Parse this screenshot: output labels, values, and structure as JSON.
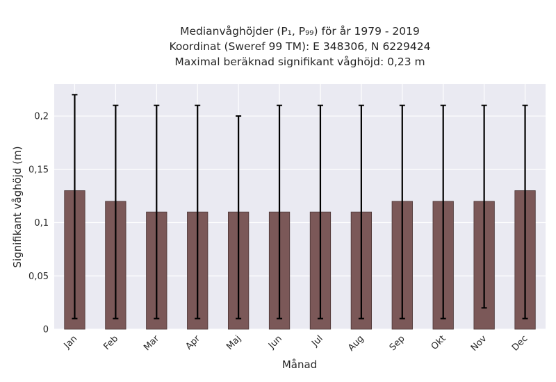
{
  "chart_data": {
    "type": "bar",
    "title_lines": [
      "Medianvåghöjder (P₁, P₉₉) för år 1979 - 2019",
      "Koordinat (Sweref 99 TM): E 348306, N 6229424",
      "Maximal beräknad signifikant våghöjd: 0,23 m"
    ],
    "xlabel": "Månad",
    "ylabel": "Signifikant våghöjd (m)",
    "categories": [
      "Jan",
      "Feb",
      "Mar",
      "Apr",
      "Maj",
      "Jun",
      "Jul",
      "Aug",
      "Sep",
      "Okt",
      "Nov",
      "Dec"
    ],
    "values": [
      0.13,
      0.12,
      0.11,
      0.11,
      0.11,
      0.11,
      0.11,
      0.11,
      0.12,
      0.12,
      0.12,
      0.13
    ],
    "error_low": [
      0.01,
      0.01,
      0.01,
      0.01,
      0.01,
      0.01,
      0.01,
      0.01,
      0.01,
      0.01,
      0.02,
      0.01
    ],
    "error_high": [
      0.22,
      0.21,
      0.21,
      0.21,
      0.2,
      0.21,
      0.21,
      0.21,
      0.21,
      0.21,
      0.21,
      0.21
    ],
    "ylim": [
      0,
      0.23
    ],
    "yticks": [
      0,
      0.05,
      0.1,
      0.15,
      0.2
    ],
    "ytick_labels": [
      "0",
      "0,05",
      "0,1",
      "0,15",
      "0,2"
    ],
    "grid": true,
    "colors": {
      "bar": "#7b5858",
      "bar_edge": "#4a3434",
      "error": "#000000",
      "background": "#eaeaf2",
      "grid": "#ffffff"
    }
  }
}
